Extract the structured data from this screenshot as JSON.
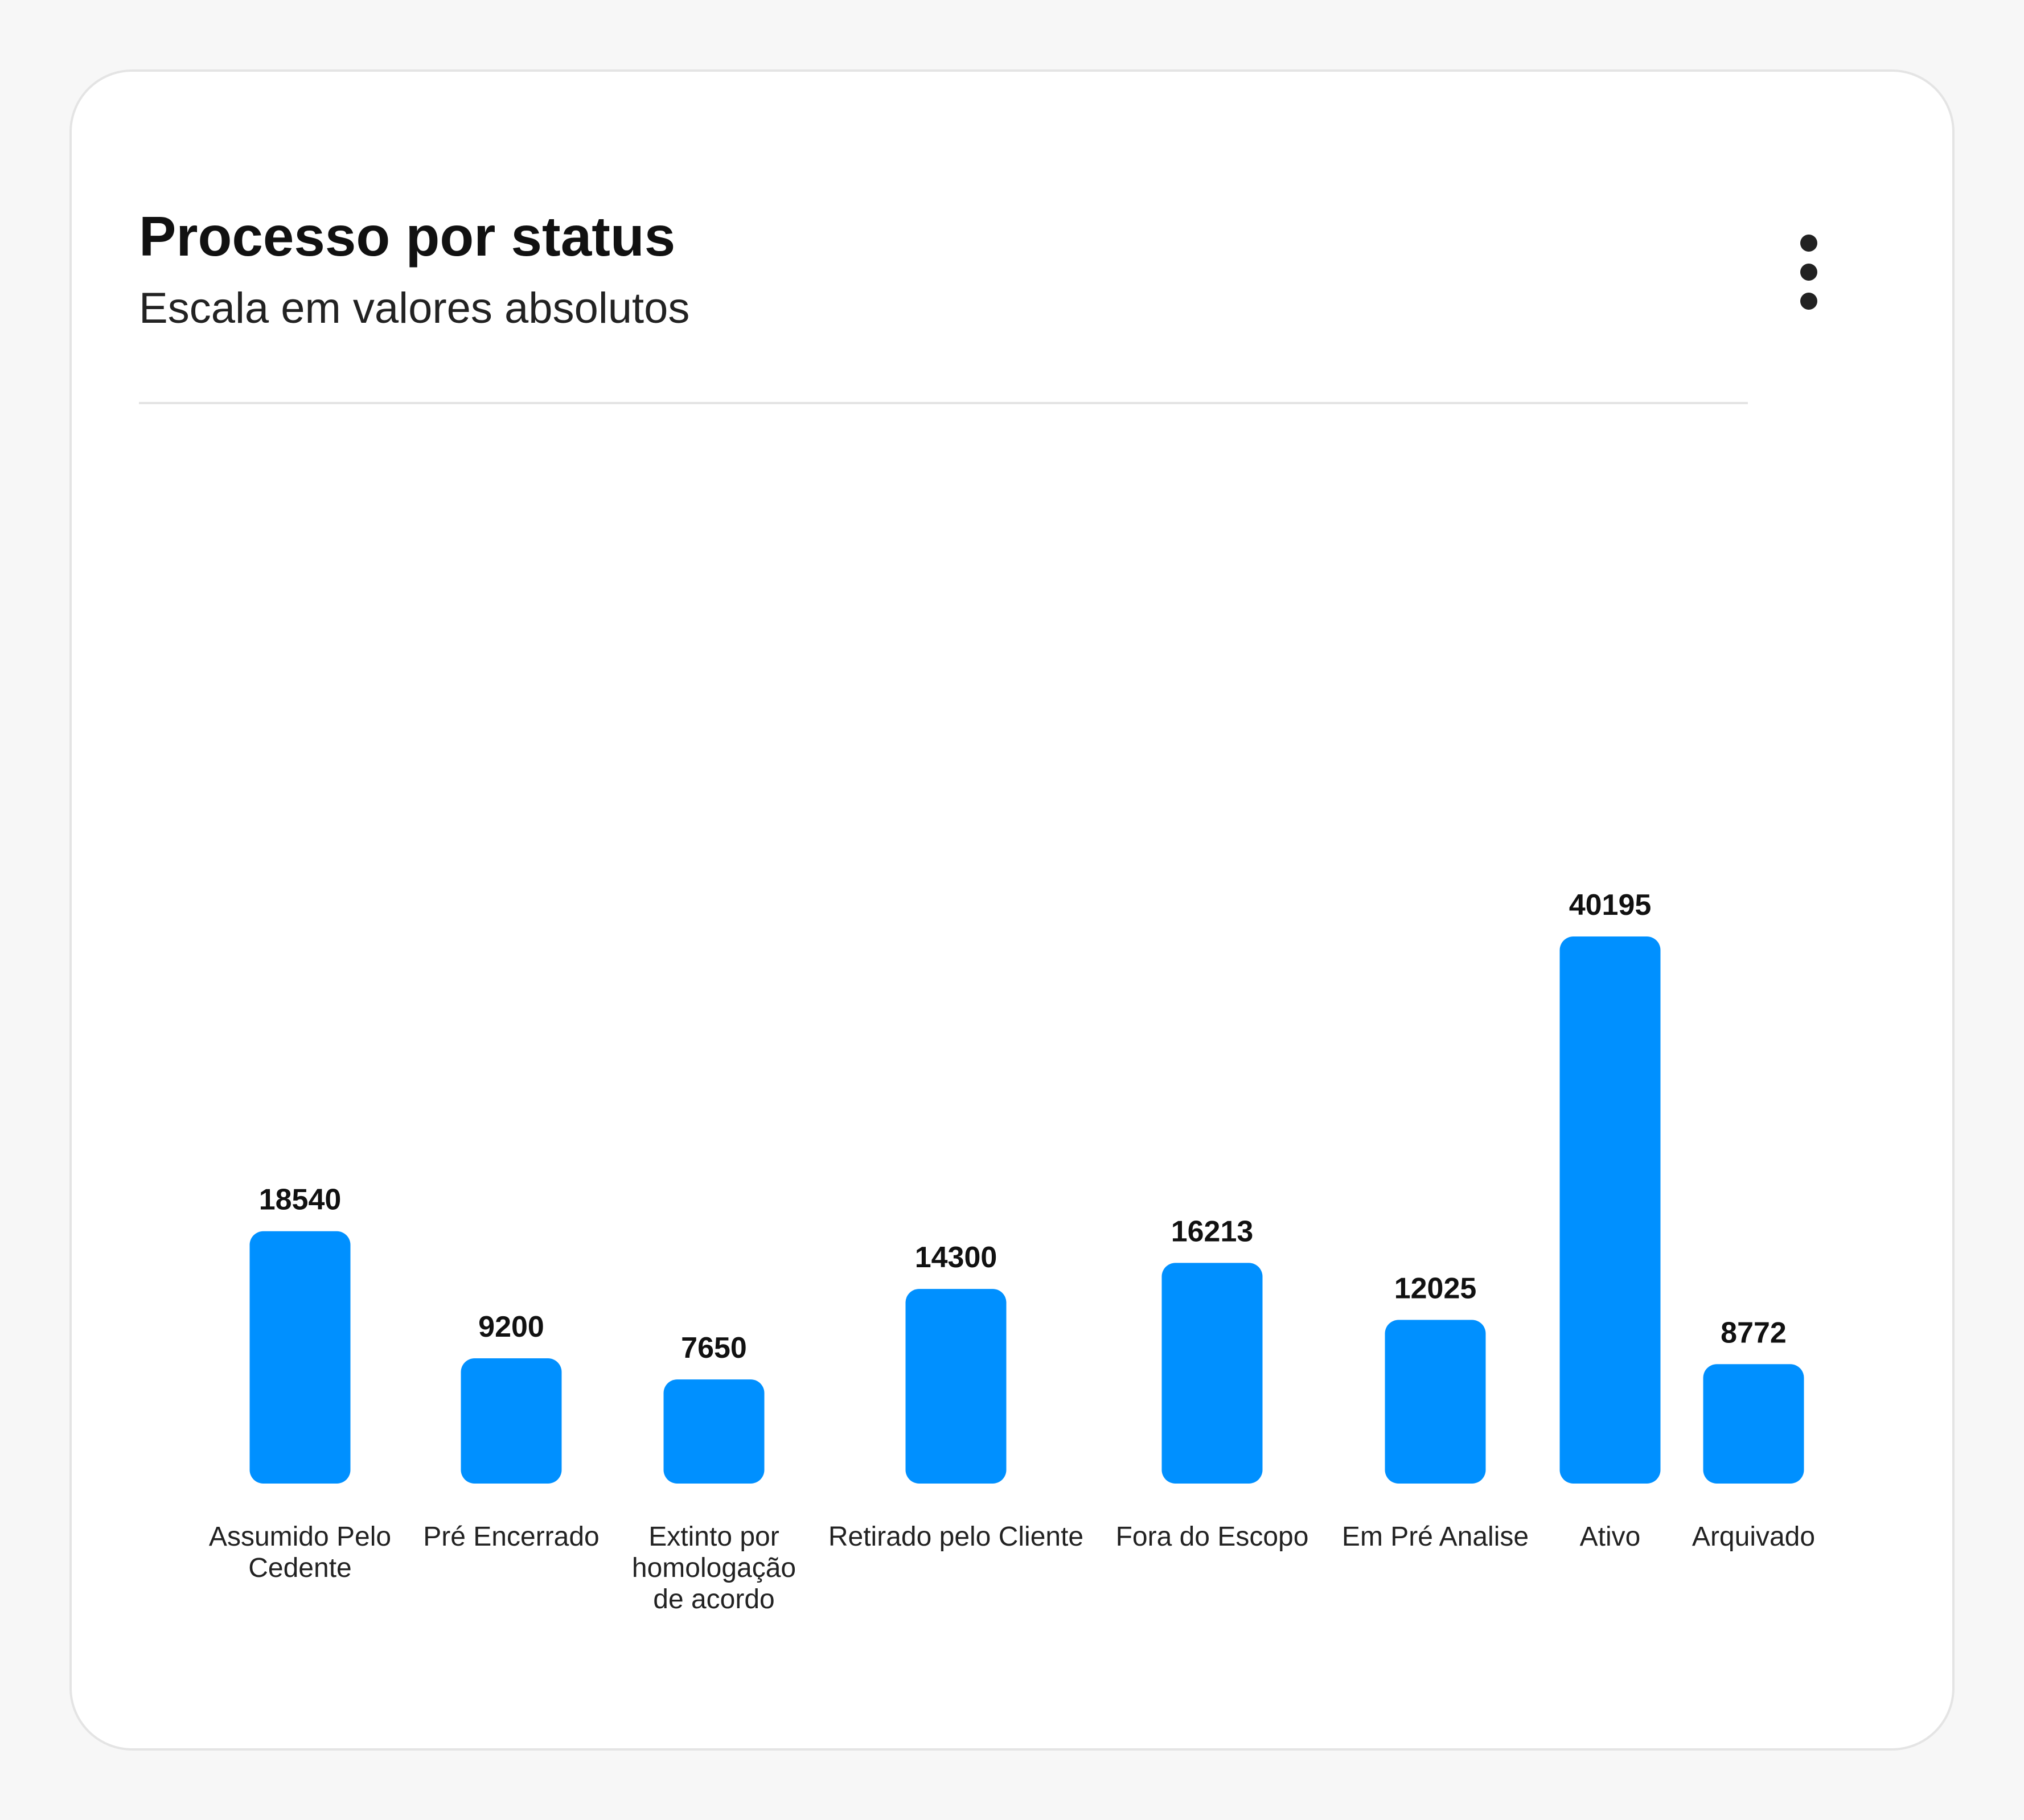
{
  "header": {
    "title": "Processo por status",
    "subtitle": "Escala em valores absolutos",
    "menu_icon": "more-vertical-icon"
  },
  "colors": {
    "bar": "#0090FF",
    "value_label": "#111111",
    "category_label": "#222222"
  },
  "chart_data": {
    "type": "bar",
    "title": "Processo por status",
    "subtitle": "Escala em valores absolutos",
    "xlabel": "",
    "ylabel": "",
    "grid": false,
    "show_y_axis": false,
    "data_labels": true,
    "categories": [
      [
        "Assumido Pelo",
        "Cedente"
      ],
      [
        "Pré Encerrado"
      ],
      [
        "Extinto por",
        "homologação",
        "de acordo"
      ],
      [
        "Retirado pelo Cliente"
      ],
      [
        "Fora do Escopo"
      ],
      [
        "Em Pré Analise"
      ],
      [
        "Ativo"
      ],
      [
        "Arquivado"
      ]
    ],
    "values": [
      18540,
      9200,
      7650,
      14300,
      16213,
      12025,
      40195,
      8772
    ],
    "ylim": [
      0,
      40195
    ]
  }
}
